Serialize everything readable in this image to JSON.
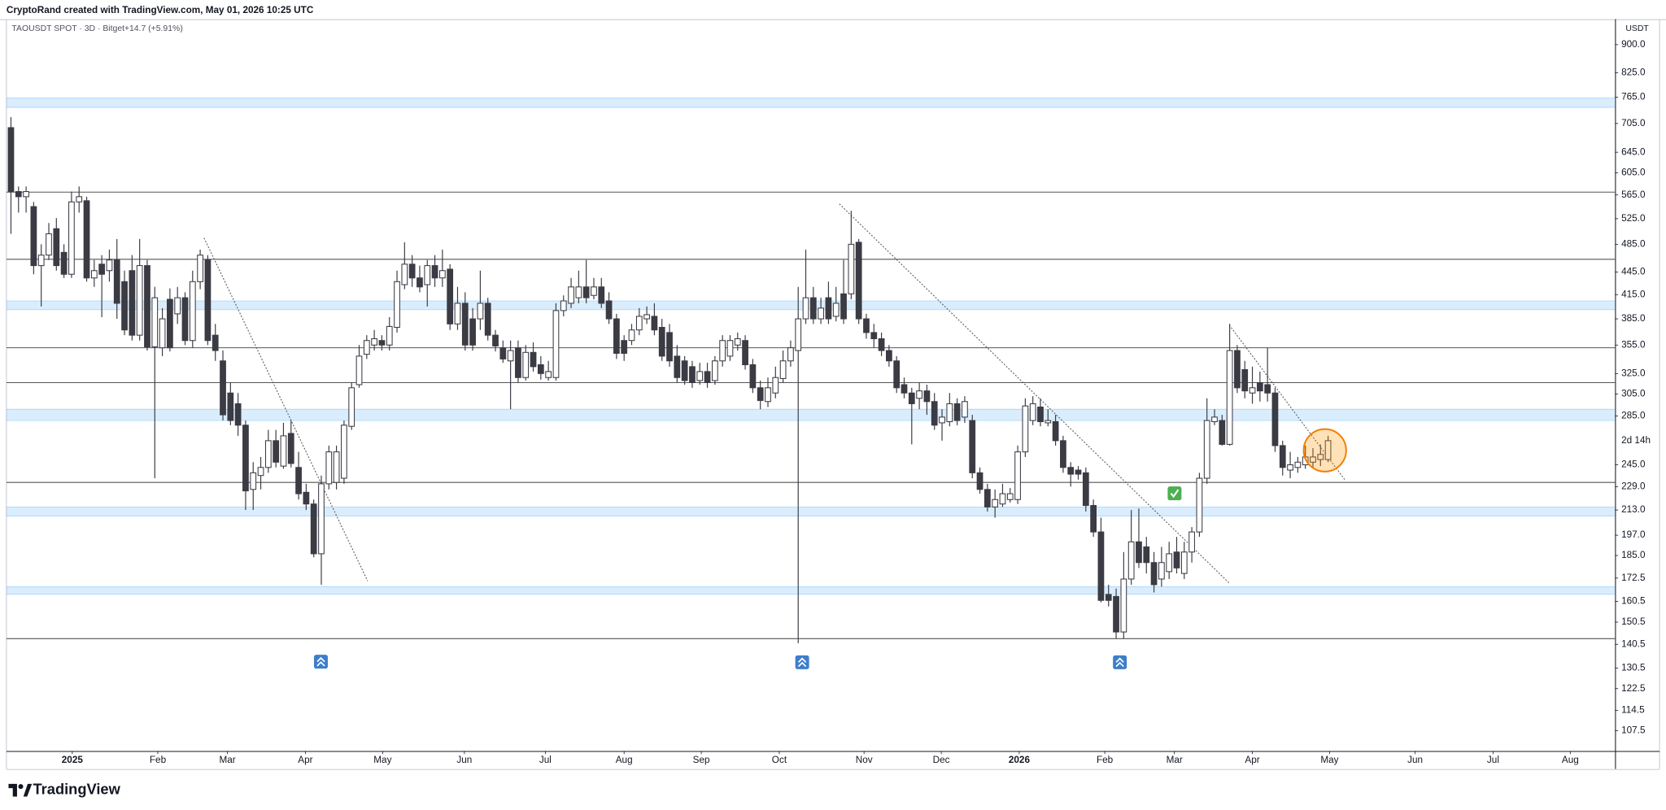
{
  "header": {
    "credit": "CryptoRand created with TradingView.com, May 01, 2026 10:25 UTC"
  },
  "footer": {
    "brand": "TradingView"
  },
  "chart_data": {
    "type": "candlestick",
    "symbol": "TAOUSDT SPOT · 3D · Bitget",
    "change": "+14.7 (+5.91%)",
    "currency": "USDT",
    "up_color": "#ffffff",
    "down_color": "#3b3b44",
    "log_scale": true,
    "ylim": [
      101,
      974
    ],
    "yticks": [
      {
        "value": 900,
        "label": "900.0"
      },
      {
        "value": 825,
        "label": "825.0"
      },
      {
        "value": 765,
        "label": "765.0"
      },
      {
        "value": 705,
        "label": "705.0"
      },
      {
        "value": 645,
        "label": "645.0"
      },
      {
        "value": 605,
        "label": "605.0"
      },
      {
        "value": 565,
        "label": "565.0"
      },
      {
        "value": 525,
        "label": "525.0"
      },
      {
        "value": 485,
        "label": "485.0"
      },
      {
        "value": 445,
        "label": "445.0"
      },
      {
        "value": 415,
        "label": "415.0"
      },
      {
        "value": 385,
        "label": "385.0"
      },
      {
        "value": 355,
        "label": "355.0"
      },
      {
        "value": 325,
        "label": "325.0"
      },
      {
        "value": 305,
        "label": "305.0"
      },
      {
        "value": 285,
        "label": "285.0"
      },
      {
        "value": 245,
        "label": "245.0"
      },
      {
        "value": 229,
        "label": "229.0"
      },
      {
        "value": 213,
        "label": "213.0"
      },
      {
        "value": 197,
        "label": "197.0"
      },
      {
        "value": 185,
        "label": "185.0"
      },
      {
        "value": 172.5,
        "label": "172.5"
      },
      {
        "value": 160.5,
        "label": "160.5"
      },
      {
        "value": 150.5,
        "label": "150.5"
      },
      {
        "value": 140.5,
        "label": "140.5"
      },
      {
        "value": 130.5,
        "label": "130.5"
      },
      {
        "value": 122.5,
        "label": "122.5"
      },
      {
        "value": 114.5,
        "label": "114.5"
      },
      {
        "value": 107.5,
        "label": "107.5"
      }
    ],
    "last_label": {
      "value": 264,
      "label": "2d 14h"
    },
    "xlim": [
      -0.6,
      211.9
    ],
    "xticks": [
      {
        "value": 8.1,
        "label": "2025"
      },
      {
        "value": 19.4,
        "label": "Feb"
      },
      {
        "value": 28.6,
        "label": "Mar"
      },
      {
        "value": 38.9,
        "label": "Apr"
      },
      {
        "value": 49.1,
        "label": "May"
      },
      {
        "value": 59.9,
        "label": "Jun"
      },
      {
        "value": 70.6,
        "label": "Jul"
      },
      {
        "value": 81.0,
        "label": "Aug"
      },
      {
        "value": 91.2,
        "label": "Sep"
      },
      {
        "value": 101.5,
        "label": "Oct"
      },
      {
        "value": 112.7,
        "label": "Nov"
      },
      {
        "value": 122.9,
        "label": "Dec"
      },
      {
        "value": 133.2,
        "label": "2026"
      },
      {
        "value": 144.5,
        "label": "Feb"
      },
      {
        "value": 153.7,
        "label": "Mar"
      },
      {
        "value": 164.0,
        "label": "Apr"
      },
      {
        "value": 174.2,
        "label": "May"
      },
      {
        "value": 185.5,
        "label": "Jun"
      },
      {
        "value": 195.8,
        "label": "Jul"
      },
      {
        "value": 206.0,
        "label": "Aug"
      }
    ],
    "levels": [
      570,
      463,
      352,
      316,
      232,
      143
    ],
    "zones": [
      [
        741,
        763
      ],
      [
        396,
        407
      ],
      [
        281,
        291
      ],
      [
        209,
        215
      ],
      [
        164,
        168
      ]
    ],
    "ohlc": [
      [
        696,
        719,
        501,
        571
      ],
      [
        571,
        580,
        535,
        562
      ],
      [
        562,
        580,
        535,
        571
      ],
      [
        545,
        553,
        442,
        454
      ],
      [
        454,
        485,
        400,
        469
      ],
      [
        469,
        518,
        462,
        501
      ],
      [
        509,
        526,
        447,
        454
      ],
      [
        473,
        485,
        437,
        442
      ],
      [
        442,
        571,
        437,
        553
      ],
      [
        553,
        580,
        535,
        562
      ],
      [
        555,
        562,
        432,
        437
      ],
      [
        437,
        462,
        425,
        447
      ],
      [
        456,
        469,
        387,
        442
      ],
      [
        447,
        477,
        432,
        462
      ],
      [
        462,
        493,
        385,
        404
      ],
      [
        432,
        447,
        366,
        372
      ],
      [
        447,
        469,
        360,
        366
      ],
      [
        366,
        493,
        360,
        454
      ],
      [
        454,
        462,
        349,
        353
      ],
      [
        353,
        425,
        235,
        411
      ],
      [
        352,
        398,
        343,
        385
      ],
      [
        409,
        423,
        348,
        352
      ],
      [
        391,
        425,
        379,
        411
      ],
      [
        411,
        418,
        355,
        360
      ],
      [
        360,
        447,
        352,
        432
      ],
      [
        432,
        477,
        422,
        469
      ],
      [
        462,
        469,
        355,
        360
      ],
      [
        366,
        379,
        338,
        349
      ],
      [
        338,
        349,
        281,
        286
      ],
      [
        306,
        316,
        277,
        281
      ],
      [
        296,
        306,
        268,
        277
      ],
      [
        277,
        281,
        213,
        226
      ],
      [
        227,
        247,
        213,
        239
      ],
      [
        237,
        251,
        227,
        243
      ],
      [
        243,
        273,
        239,
        264
      ],
      [
        264,
        273,
        243,
        247
      ],
      [
        244,
        279,
        242,
        268
      ],
      [
        270,
        281,
        243,
        246
      ],
      [
        243,
        255,
        220,
        224
      ],
      [
        225,
        231,
        213,
        217
      ],
      [
        217,
        220,
        184,
        186
      ],
      [
        186,
        237,
        169,
        231
      ],
      [
        231,
        260,
        227,
        255
      ],
      [
        232,
        260,
        227,
        255
      ],
      [
        235,
        281,
        231,
        277
      ],
      [
        276,
        316,
        273,
        311
      ],
      [
        314,
        355,
        311,
        343
      ],
      [
        345,
        366,
        340,
        360
      ],
      [
        355,
        372,
        349,
        362
      ],
      [
        360,
        366,
        349,
        355
      ],
      [
        355,
        387,
        349,
        376
      ],
      [
        375,
        447,
        369,
        432
      ],
      [
        428,
        488,
        422,
        456
      ],
      [
        456,
        469,
        425,
        437
      ],
      [
        437,
        454,
        418,
        425
      ],
      [
        428,
        462,
        400,
        454
      ],
      [
        454,
        469,
        425,
        437
      ],
      [
        437,
        477,
        425,
        447
      ],
      [
        449,
        456,
        372,
        379
      ],
      [
        379,
        425,
        372,
        404
      ],
      [
        404,
        418,
        349,
        355
      ],
      [
        385,
        398,
        349,
        355
      ],
      [
        385,
        447,
        372,
        404
      ],
      [
        404,
        411,
        360,
        366
      ],
      [
        366,
        372,
        348,
        354
      ],
      [
        352,
        360,
        336,
        340
      ],
      [
        338,
        360,
        291,
        349
      ],
      [
        352,
        360,
        316,
        321
      ],
      [
        321,
        355,
        318,
        347
      ],
      [
        347,
        358,
        327,
        332
      ],
      [
        334,
        343,
        319,
        325
      ],
      [
        321,
        338,
        318,
        327
      ],
      [
        321,
        404,
        318,
        395
      ],
      [
        395,
        414,
        388,
        407
      ],
      [
        404,
        437,
        398,
        425
      ],
      [
        411,
        447,
        404,
        425
      ],
      [
        425,
        462,
        404,
        411
      ],
      [
        414,
        437,
        409,
        425
      ],
      [
        425,
        437,
        398,
        404
      ],
      [
        407,
        418,
        379,
        385
      ],
      [
        385,
        391,
        340,
        346
      ],
      [
        360,
        366,
        338,
        346
      ],
      [
        360,
        379,
        355,
        372
      ],
      [
        372,
        398,
        366,
        388
      ],
      [
        385,
        400,
        379,
        390
      ],
      [
        388,
        404,
        366,
        372
      ],
      [
        375,
        385,
        338,
        343
      ],
      [
        369,
        379,
        332,
        338
      ],
      [
        343,
        355,
        316,
        321
      ],
      [
        338,
        343,
        314,
        318
      ],
      [
        332,
        338,
        311,
        316
      ],
      [
        318,
        336,
        314,
        327
      ],
      [
        327,
        336,
        311,
        316
      ],
      [
        318,
        343,
        314,
        338
      ],
      [
        338,
        366,
        332,
        360
      ],
      [
        343,
        366,
        338,
        360
      ],
      [
        355,
        369,
        349,
        362
      ],
      [
        360,
        366,
        329,
        334
      ],
      [
        334,
        340,
        306,
        311
      ],
      [
        311,
        318,
        291,
        299
      ],
      [
        298,
        321,
        293,
        311
      ],
      [
        306,
        332,
        301,
        321
      ],
      [
        320,
        349,
        316,
        338
      ],
      [
        338,
        360,
        332,
        352
      ],
      [
        349,
        425,
        141,
        385
      ],
      [
        385,
        477,
        379,
        411
      ],
      [
        411,
        425,
        379,
        385
      ],
      [
        385,
        411,
        379,
        398
      ],
      [
        411,
        432,
        379,
        385
      ],
      [
        388,
        425,
        382,
        404
      ],
      [
        416,
        462,
        379,
        385
      ],
      [
        416,
        538,
        409,
        485
      ],
      [
        488,
        493,
        379,
        385
      ],
      [
        385,
        391,
        362,
        369
      ],
      [
        369,
        379,
        352,
        362
      ],
      [
        362,
        369,
        343,
        349
      ],
      [
        349,
        355,
        332,
        338
      ],
      [
        338,
        343,
        306,
        311
      ],
      [
        314,
        321,
        301,
        306
      ],
      [
        306,
        311,
        261,
        296
      ],
      [
        301,
        316,
        291,
        308
      ],
      [
        308,
        314,
        286,
        298
      ],
      [
        298,
        306,
        273,
        277
      ],
      [
        279,
        291,
        264,
        284
      ],
      [
        280,
        306,
        276,
        296
      ],
      [
        296,
        301,
        277,
        281
      ],
      [
        284,
        303,
        279,
        298
      ],
      [
        281,
        286,
        235,
        239
      ],
      [
        239,
        243,
        224,
        227
      ],
      [
        227,
        231,
        212,
        215
      ],
      [
        215,
        227,
        208,
        220
      ],
      [
        217,
        231,
        215,
        224
      ],
      [
        220,
        228,
        218,
        224
      ],
      [
        220,
        260,
        217,
        255
      ],
      [
        255,
        301,
        251,
        294
      ],
      [
        281,
        303,
        277,
        296
      ],
      [
        293,
        301,
        276,
        280
      ],
      [
        279,
        291,
        276,
        281
      ],
      [
        280,
        286,
        260,
        264
      ],
      [
        264,
        268,
        239,
        243
      ],
      [
        243,
        247,
        229,
        238
      ],
      [
        241,
        244,
        234,
        238
      ],
      [
        239,
        243,
        212,
        216
      ],
      [
        216,
        220,
        196,
        199
      ],
      [
        199,
        208,
        160,
        161
      ],
      [
        164,
        169,
        158,
        161
      ],
      [
        163,
        167,
        143,
        146
      ],
      [
        146,
        187,
        143,
        172
      ],
      [
        172,
        213,
        169,
        193
      ],
      [
        193,
        214,
        178,
        181
      ],
      [
        190,
        196,
        175,
        181
      ],
      [
        181,
        187,
        165,
        169
      ],
      [
        172,
        190,
        168,
        181
      ],
      [
        176,
        193,
        172,
        186
      ],
      [
        187,
        196,
        175,
        178
      ],
      [
        175,
        193,
        172,
        187
      ],
      [
        187,
        202,
        181,
        199
      ],
      [
        199,
        239,
        196,
        235
      ],
      [
        235,
        301,
        231,
        281
      ],
      [
        280,
        291,
        277,
        284
      ],
      [
        281,
        286,
        260,
        261
      ],
      [
        261,
        379,
        260,
        349
      ],
      [
        349,
        355,
        306,
        311
      ],
      [
        329,
        338,
        301,
        308
      ],
      [
        306,
        332,
        296,
        311
      ],
      [
        316,
        327,
        298,
        308
      ],
      [
        314,
        352,
        298,
        306
      ],
      [
        306,
        311,
        255,
        260
      ],
      [
        260,
        264,
        237,
        243
      ],
      [
        241,
        255,
        235,
        245
      ],
      [
        243,
        251,
        239,
        247
      ],
      [
        245,
        260,
        242,
        251
      ],
      [
        247,
        258,
        243,
        251
      ],
      [
        249,
        261,
        244,
        253
      ],
      [
        249,
        268,
        247,
        264
      ]
    ]
  }
}
